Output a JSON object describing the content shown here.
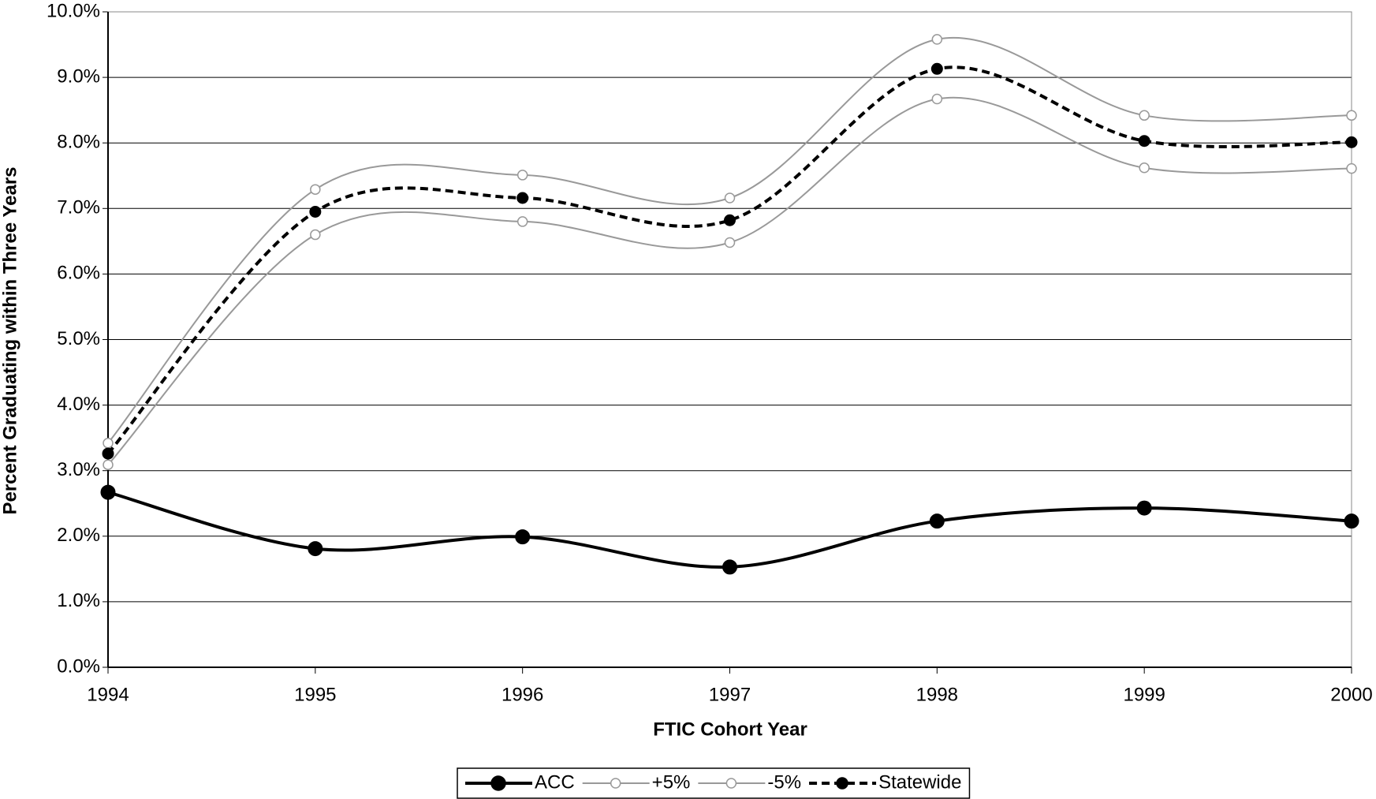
{
  "chart_data": {
    "type": "line",
    "x_label": "FTIC Cohort Year",
    "y_label": "Percent Graduating within Three Years",
    "x": [
      1994,
      1995,
      1996,
      1997,
      1998,
      1999,
      2000
    ],
    "xlim": [
      1994,
      2000
    ],
    "xticks": [
      1994,
      1995,
      1996,
      1997,
      1998,
      1999,
      2000
    ],
    "ylim": [
      0,
      10
    ],
    "yticks": [
      {
        "value": 0,
        "label": "0.0%"
      },
      {
        "value": 1,
        "label": "1.0%"
      },
      {
        "value": 2,
        "label": "2.0%"
      },
      {
        "value": 3,
        "label": "3.0%"
      },
      {
        "value": 4,
        "label": "4.0%"
      },
      {
        "value": 5,
        "label": "5.0%"
      },
      {
        "value": 6,
        "label": "6.0%"
      },
      {
        "value": 7,
        "label": "7.0%"
      },
      {
        "value": 8,
        "label": "8.0%"
      },
      {
        "value": 9,
        "label": "9.0%"
      },
      {
        "value": 10,
        "label": "10.0%"
      }
    ],
    "grid": true,
    "smooth": true,
    "legend": "bottom",
    "series": [
      {
        "name": "ACC",
        "color": "#000000",
        "line_width": 4,
        "dashed": false,
        "marker": "filled",
        "values": [
          2.67,
          1.81,
          1.99,
          1.53,
          2.23,
          2.43,
          2.23
        ]
      },
      {
        "name": "+5%",
        "color": "#999999",
        "line_width": 2,
        "dashed": false,
        "marker": "open",
        "values": [
          3.42,
          7.29,
          7.51,
          7.16,
          9.58,
          8.42,
          8.42
        ]
      },
      {
        "name": "-5%",
        "color": "#999999",
        "line_width": 2,
        "dashed": false,
        "marker": "open",
        "values": [
          3.09,
          6.6,
          6.8,
          6.48,
          8.67,
          7.62,
          7.61
        ]
      },
      {
        "name": "Statewide",
        "color": "#000000",
        "line_width": 4,
        "dashed": true,
        "marker": "filled",
        "values": [
          3.26,
          6.95,
          7.16,
          6.82,
          9.13,
          8.03,
          8.01
        ]
      }
    ]
  }
}
